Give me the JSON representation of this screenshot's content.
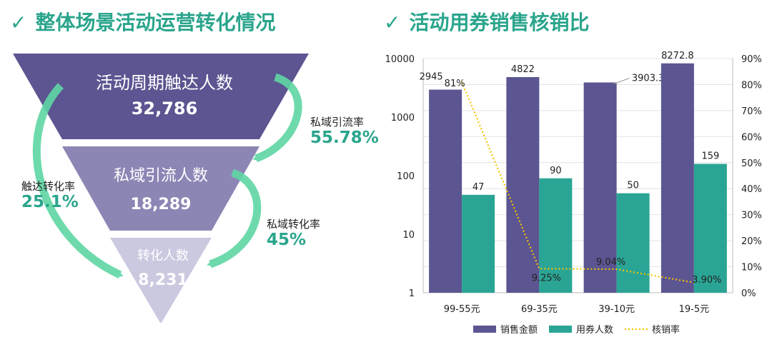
{
  "funnel": {
    "title": "整体场景活动运营转化情况",
    "check": "✓",
    "stages": [
      {
        "label": "活动周期触达人数",
        "value": "32,786"
      },
      {
        "label": "私域引流人数",
        "value": "18,289"
      },
      {
        "label": "转化人数",
        "value": "8,231"
      }
    ],
    "rates": [
      {
        "name": "私域引流率",
        "value": "55.78%"
      },
      {
        "name": "私域转化率",
        "value": "45%"
      },
      {
        "name": "触达转化率",
        "value": "25.1%"
      }
    ],
    "colors": {
      "stage1": "#5c5591",
      "stage2": "#8c86b5",
      "stage3": "#cbc9e0",
      "arrow": "#5fd6a4",
      "accent": "#2aa58c"
    }
  },
  "chart_data": {
    "type": "bar",
    "title": "活动用券销售核销比",
    "categories": [
      "99-55元",
      "69-35元",
      "39-10元",
      "19-5元"
    ],
    "series": [
      {
        "name": "销售金额",
        "kind": "bar",
        "axis": "left",
        "color": "#5b5591",
        "values": [
          2945,
          4822,
          3903.3,
          8272.8
        ],
        "labels": [
          "2945",
          "4822",
          "3903.3",
          "8272.8"
        ]
      },
      {
        "name": "用券人数",
        "kind": "bar",
        "axis": "left",
        "color": "#2aa595",
        "values": [
          47,
          90,
          50,
          159
        ],
        "labels": [
          "47",
          "90",
          "50",
          "159"
        ]
      },
      {
        "name": "核销率",
        "kind": "line",
        "axis": "right",
        "color": "#f5c400",
        "values": [
          81,
          9.25,
          9.04,
          3.9
        ],
        "labels": [
          "81%",
          "9.25%",
          "9.04%",
          "3.90%"
        ]
      }
    ],
    "y_left": {
      "scale": "log",
      "range": [
        1,
        10000
      ],
      "ticks": [
        "1",
        "10",
        "100",
        "1000",
        "10000"
      ]
    },
    "y_right": {
      "range": [
        0,
        90
      ],
      "ticks": [
        "0%",
        "10%",
        "20%",
        "30%",
        "40%",
        "50%",
        "60%",
        "70%",
        "80%",
        "90%"
      ]
    },
    "grid": true,
    "legend": "bottom"
  }
}
